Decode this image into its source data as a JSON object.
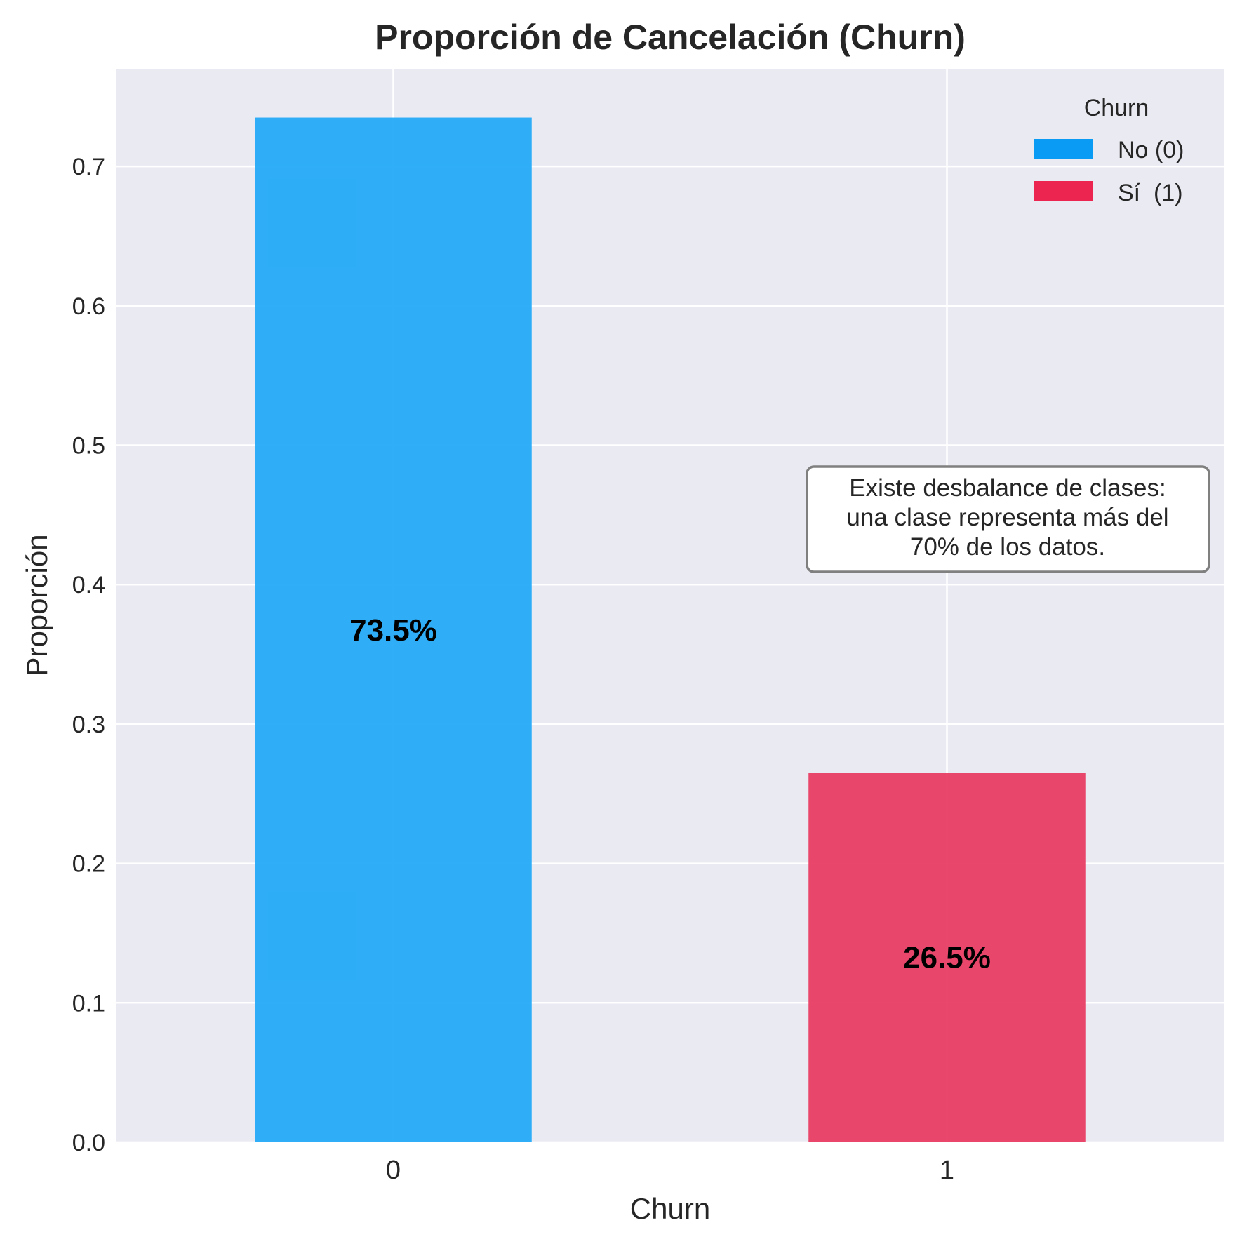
{
  "chart_data": {
    "type": "bar",
    "title": "Proporción de Cancelación (Churn)",
    "xlabel": "Churn",
    "ylabel": "Proporción",
    "categories": [
      "0",
      "1"
    ],
    "values": [
      0.735,
      0.265
    ],
    "data_labels": [
      "73.5%",
      "26.5%"
    ],
    "bar_colors": [
      "#1ea8f7",
      "#e8375f"
    ],
    "ylim": [
      0,
      0.77
    ],
    "y_ticks": [
      0.0,
      0.1,
      0.2,
      0.3,
      0.4,
      0.5,
      0.6,
      0.7
    ],
    "y_tick_labels": [
      "0.0",
      "0.1",
      "0.2",
      "0.3",
      "0.4",
      "0.5",
      "0.6",
      "0.7"
    ],
    "grid": true,
    "legend": {
      "title": "Churn",
      "placement": "top-right",
      "entries": [
        {
          "label": "No (0)",
          "color": "#0a9cf5"
        },
        {
          "label": "Sí  (1)",
          "color": "#ec2450"
        }
      ]
    },
    "annotation": {
      "lines": [
        "Existe desbalance de clases:",
        "una clase representa más del",
        "70% de los datos."
      ]
    }
  }
}
